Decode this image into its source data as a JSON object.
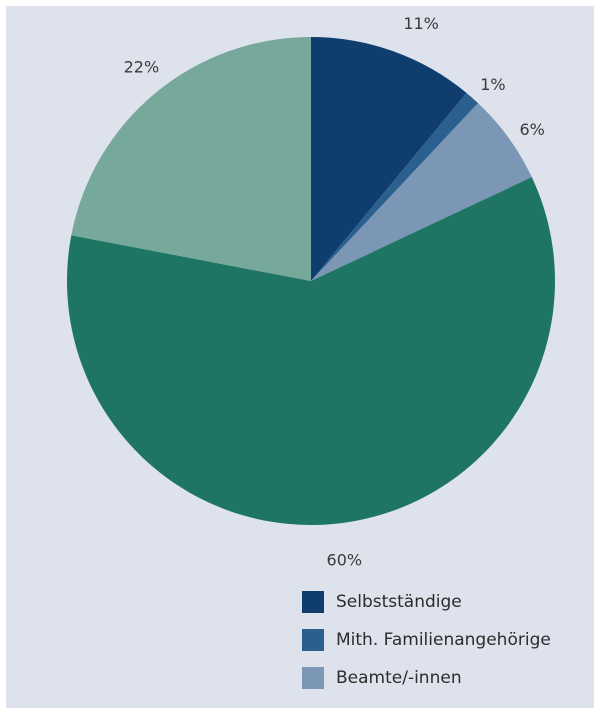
{
  "chart_data": {
    "type": "pie",
    "slices": [
      {
        "label": "Selbstständige",
        "value": 11,
        "display": "11%",
        "color": "#0e3d6e"
      },
      {
        "label": "Mith. Familienangehörige",
        "value": 1,
        "display": "1%",
        "color": "#2a5f8e"
      },
      {
        "label": "Beamte/-innen",
        "value": 6,
        "display": "6%",
        "color": "#7b97b5"
      },
      {
        "label": "",
        "value": 60,
        "display": "60%",
        "color": "#1e7563"
      },
      {
        "label": "",
        "value": 22,
        "display": "22%",
        "color": "#76a89b"
      }
    ],
    "legend": [
      {
        "label": "Selbstständige",
        "color": "#0e3d6e"
      },
      {
        "label": "Mith. Familienangehörige",
        "color": "#2a5f8e"
      },
      {
        "label": "Beamte/-innen",
        "color": "#7b97b5"
      }
    ],
    "legend_placement": "bottom-right",
    "start": "12 o'clock, clockwise"
  },
  "background_color": "#dde2ec"
}
